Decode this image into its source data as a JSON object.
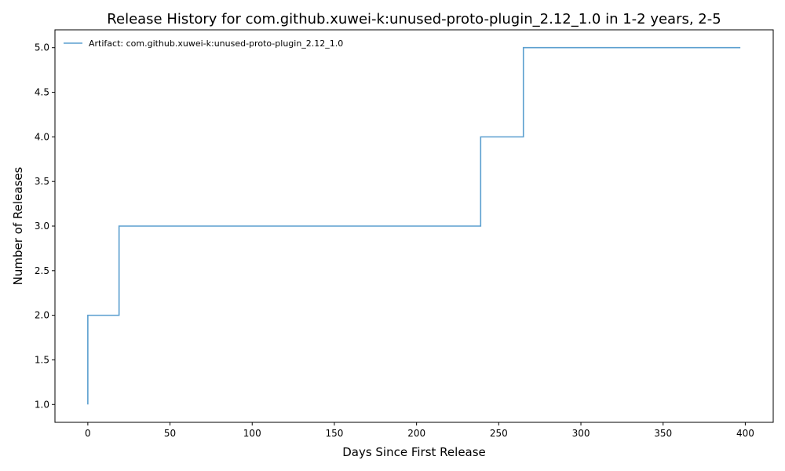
{
  "chart_data": {
    "type": "line",
    "step": "post",
    "title": "Release History for com.github.xuwei-k:unused-proto-plugin_2.12_1.0 in 1-2 years, 2-5",
    "xlabel": "Days Since First Release",
    "ylabel": "Number of Releases",
    "xlim": [
      -20,
      417
    ],
    "ylim": [
      0.8,
      5.2
    ],
    "xticks": [
      0,
      50,
      100,
      150,
      200,
      250,
      300,
      350,
      400
    ],
    "xtick_labels": [
      "0",
      "50",
      "100",
      "150",
      "200",
      "250",
      "300",
      "350",
      "400"
    ],
    "yticks": [
      1.0,
      1.5,
      2.0,
      2.5,
      3.0,
      3.5,
      4.0,
      4.5,
      5.0
    ],
    "ytick_labels": [
      "1.0",
      "1.5",
      "2.0",
      "2.5",
      "3.0",
      "3.5",
      "4.0",
      "4.5",
      "5.0"
    ],
    "grid": false,
    "legend_position": "top-left",
    "series": [
      {
        "name": "Artifact: com.github.xuwei-k:unused-proto-plugin_2.12_1.0",
        "color": "#5b9fcf",
        "x": [
          0,
          0,
          19,
          239,
          265,
          397
        ],
        "y": [
          1,
          2,
          3,
          4,
          5,
          5
        ]
      }
    ]
  }
}
